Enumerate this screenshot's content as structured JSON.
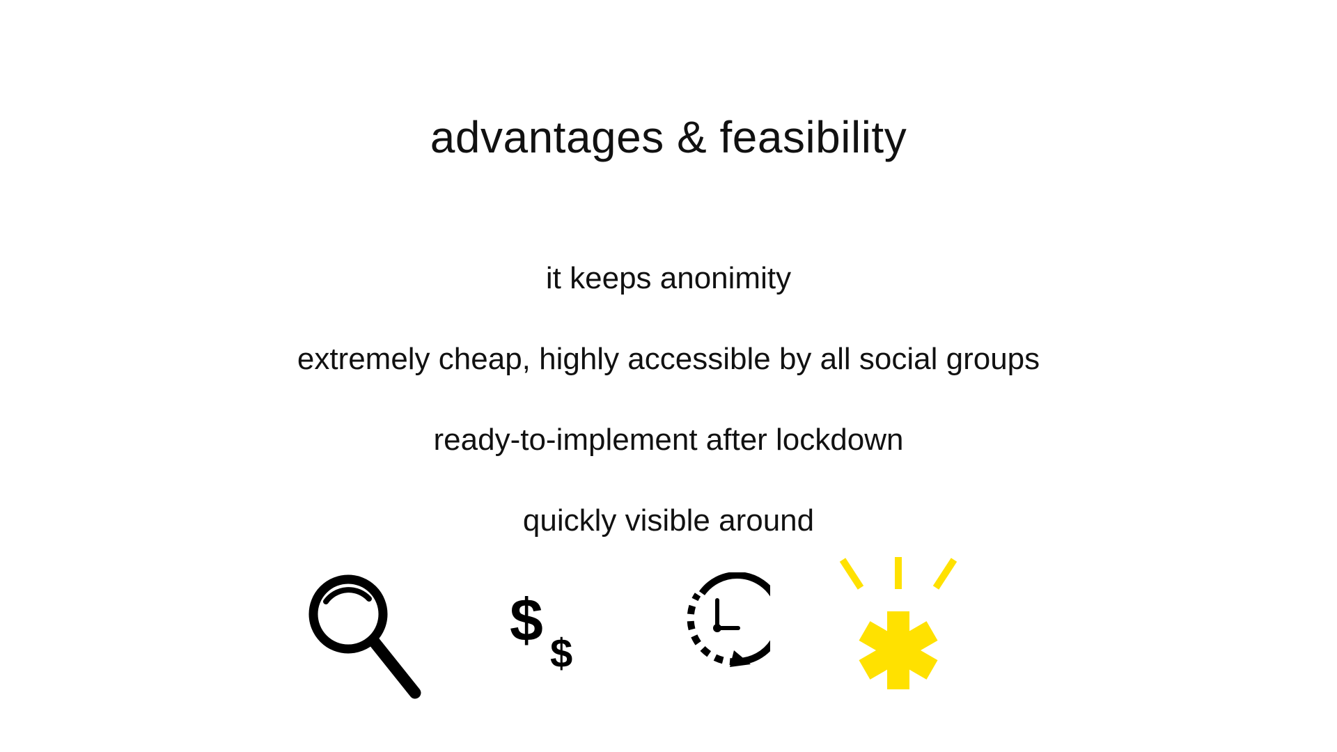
{
  "slide": {
    "title": "advantages & feasibility",
    "bullets": [
      "it keeps anonimity",
      "extremely cheap, highly accessible by all social groups",
      "ready-to-implement after lockdown",
      "quickly visible around"
    ]
  },
  "icons": [
    {
      "name": "magnifying-glass-icon",
      "color": "#000000"
    },
    {
      "name": "dollar-signs-icon",
      "color": "#000000",
      "glyph_big": "$",
      "glyph_small": "$"
    },
    {
      "name": "clock-rewind-icon",
      "color": "#000000"
    },
    {
      "name": "emergency-star-icon",
      "color": "#FFE100"
    }
  ]
}
